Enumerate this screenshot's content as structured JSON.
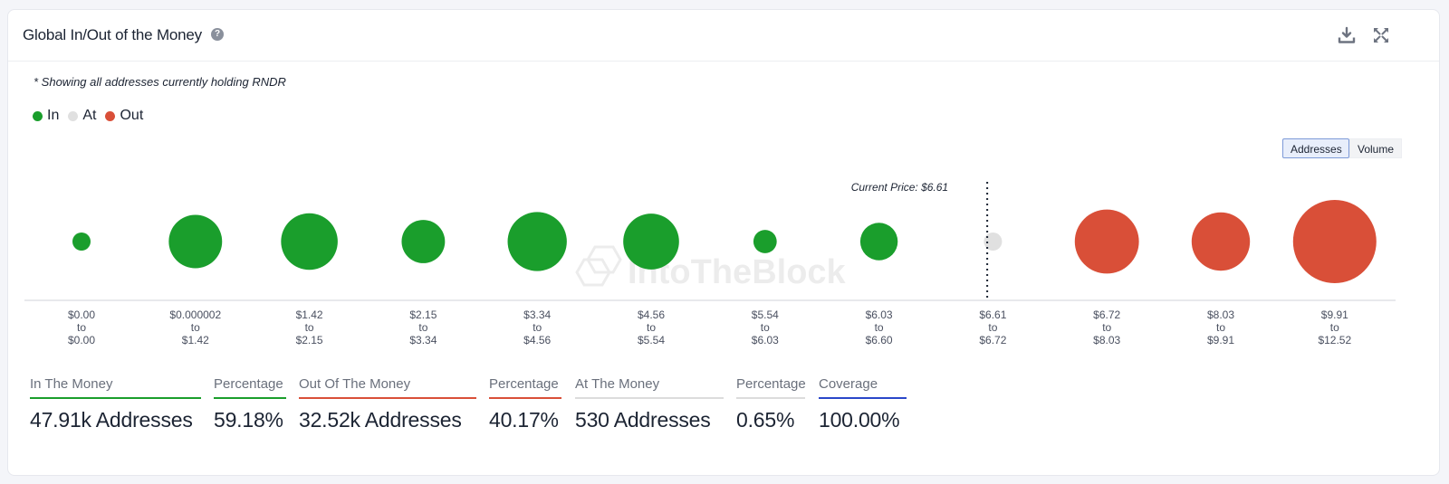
{
  "card": {
    "title": "Global In/Out of the Money",
    "note": "* Showing all addresses currently holding RNDR",
    "watermark": "IntoTheBlock"
  },
  "icons": {
    "help": "question-circle-icon",
    "download": "download-icon",
    "expand": "expand-icon"
  },
  "legend": [
    {
      "label": "In",
      "color": "#1a9e2c"
    },
    {
      "label": "At",
      "color": "#e0e0e0"
    },
    {
      "label": "Out",
      "color": "#d94f38"
    }
  ],
  "toggles": {
    "addresses": "Addresses",
    "volume": "Volume",
    "selected": "Addresses"
  },
  "chart_data": {
    "type": "bubble",
    "current_price_label": "Current Price: $6.61",
    "current_price_after_bucket_index": 8,
    "buckets": [
      {
        "from": "$0.00",
        "to": "$0.00",
        "status": "In",
        "relative_size": 0.1
      },
      {
        "from": "$0.000002",
        "to": "$1.42",
        "status": "In",
        "relative_size": 0.64
      },
      {
        "from": "$1.42",
        "to": "$2.15",
        "status": "In",
        "relative_size": 0.68
      },
      {
        "from": "$2.15",
        "to": "$3.34",
        "status": "In",
        "relative_size": 0.52
      },
      {
        "from": "$3.34",
        "to": "$4.56",
        "status": "In",
        "relative_size": 0.71
      },
      {
        "from": "$4.56",
        "to": "$5.54",
        "status": "In",
        "relative_size": 0.67
      },
      {
        "from": "$5.54",
        "to": "$6.03",
        "status": "In",
        "relative_size": 0.28
      },
      {
        "from": "$6.03",
        "to": "$6.60",
        "status": "In",
        "relative_size": 0.45
      },
      {
        "from": "$6.61",
        "to": "$6.72",
        "status": "At",
        "relative_size": 0.1
      },
      {
        "from": "$6.72",
        "to": "$8.03",
        "status": "Out",
        "relative_size": 0.77
      },
      {
        "from": "$8.03",
        "to": "$9.91",
        "status": "Out",
        "relative_size": 0.7
      },
      {
        "from": "$9.91",
        "to": "$12.52",
        "status": "Out",
        "relative_size": 1.0
      }
    ],
    "tick_connector": "to"
  },
  "stats": [
    {
      "label": "In The Money",
      "value": "47.91k Addresses",
      "color": "#1a9e2c"
    },
    {
      "label": "Percentage",
      "value": "59.18%",
      "color": "#1a9e2c"
    },
    {
      "label": "Out Of The Money",
      "value": "32.52k Addresses",
      "color": "#d94f38"
    },
    {
      "label": "Percentage",
      "value": "40.17%",
      "color": "#d94f38"
    },
    {
      "label": "At The Money",
      "value": "530 Addresses",
      "color": "#dcdcdc"
    },
    {
      "label": "Percentage",
      "value": "0.65%",
      "color": "#dcdcdc"
    },
    {
      "label": "Coverage",
      "value": "100.00%",
      "color": "#2a47c9"
    }
  ]
}
